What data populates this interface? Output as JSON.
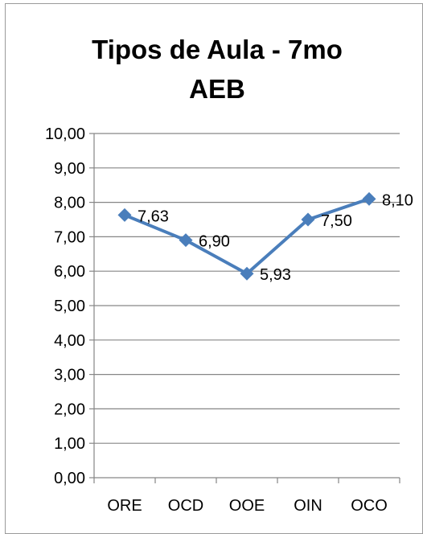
{
  "chart_data": {
    "type": "line",
    "title_lines": [
      "Tipos de Aula - 7mo",
      "AEB"
    ],
    "categories": [
      "ORE",
      "OCD",
      "OOE",
      "OIN",
      "OCO"
    ],
    "series": [
      {
        "values": [
          7.63,
          6.9,
          5.93,
          7.5,
          8.1
        ],
        "labels": [
          "7,63",
          "6,90",
          "5,93",
          "7,50",
          "8,10"
        ]
      }
    ],
    "y_ticks": [
      "0,00",
      "1,00",
      "2,00",
      "3,00",
      "4,00",
      "5,00",
      "6,00",
      "7,00",
      "8,00",
      "9,00",
      "10,00"
    ],
    "ylim": [
      0,
      10
    ],
    "grid": true,
    "legend": "none",
    "colors": {
      "series": "#4a7ebb",
      "grid": "#868686",
      "axis": "#868686"
    }
  }
}
